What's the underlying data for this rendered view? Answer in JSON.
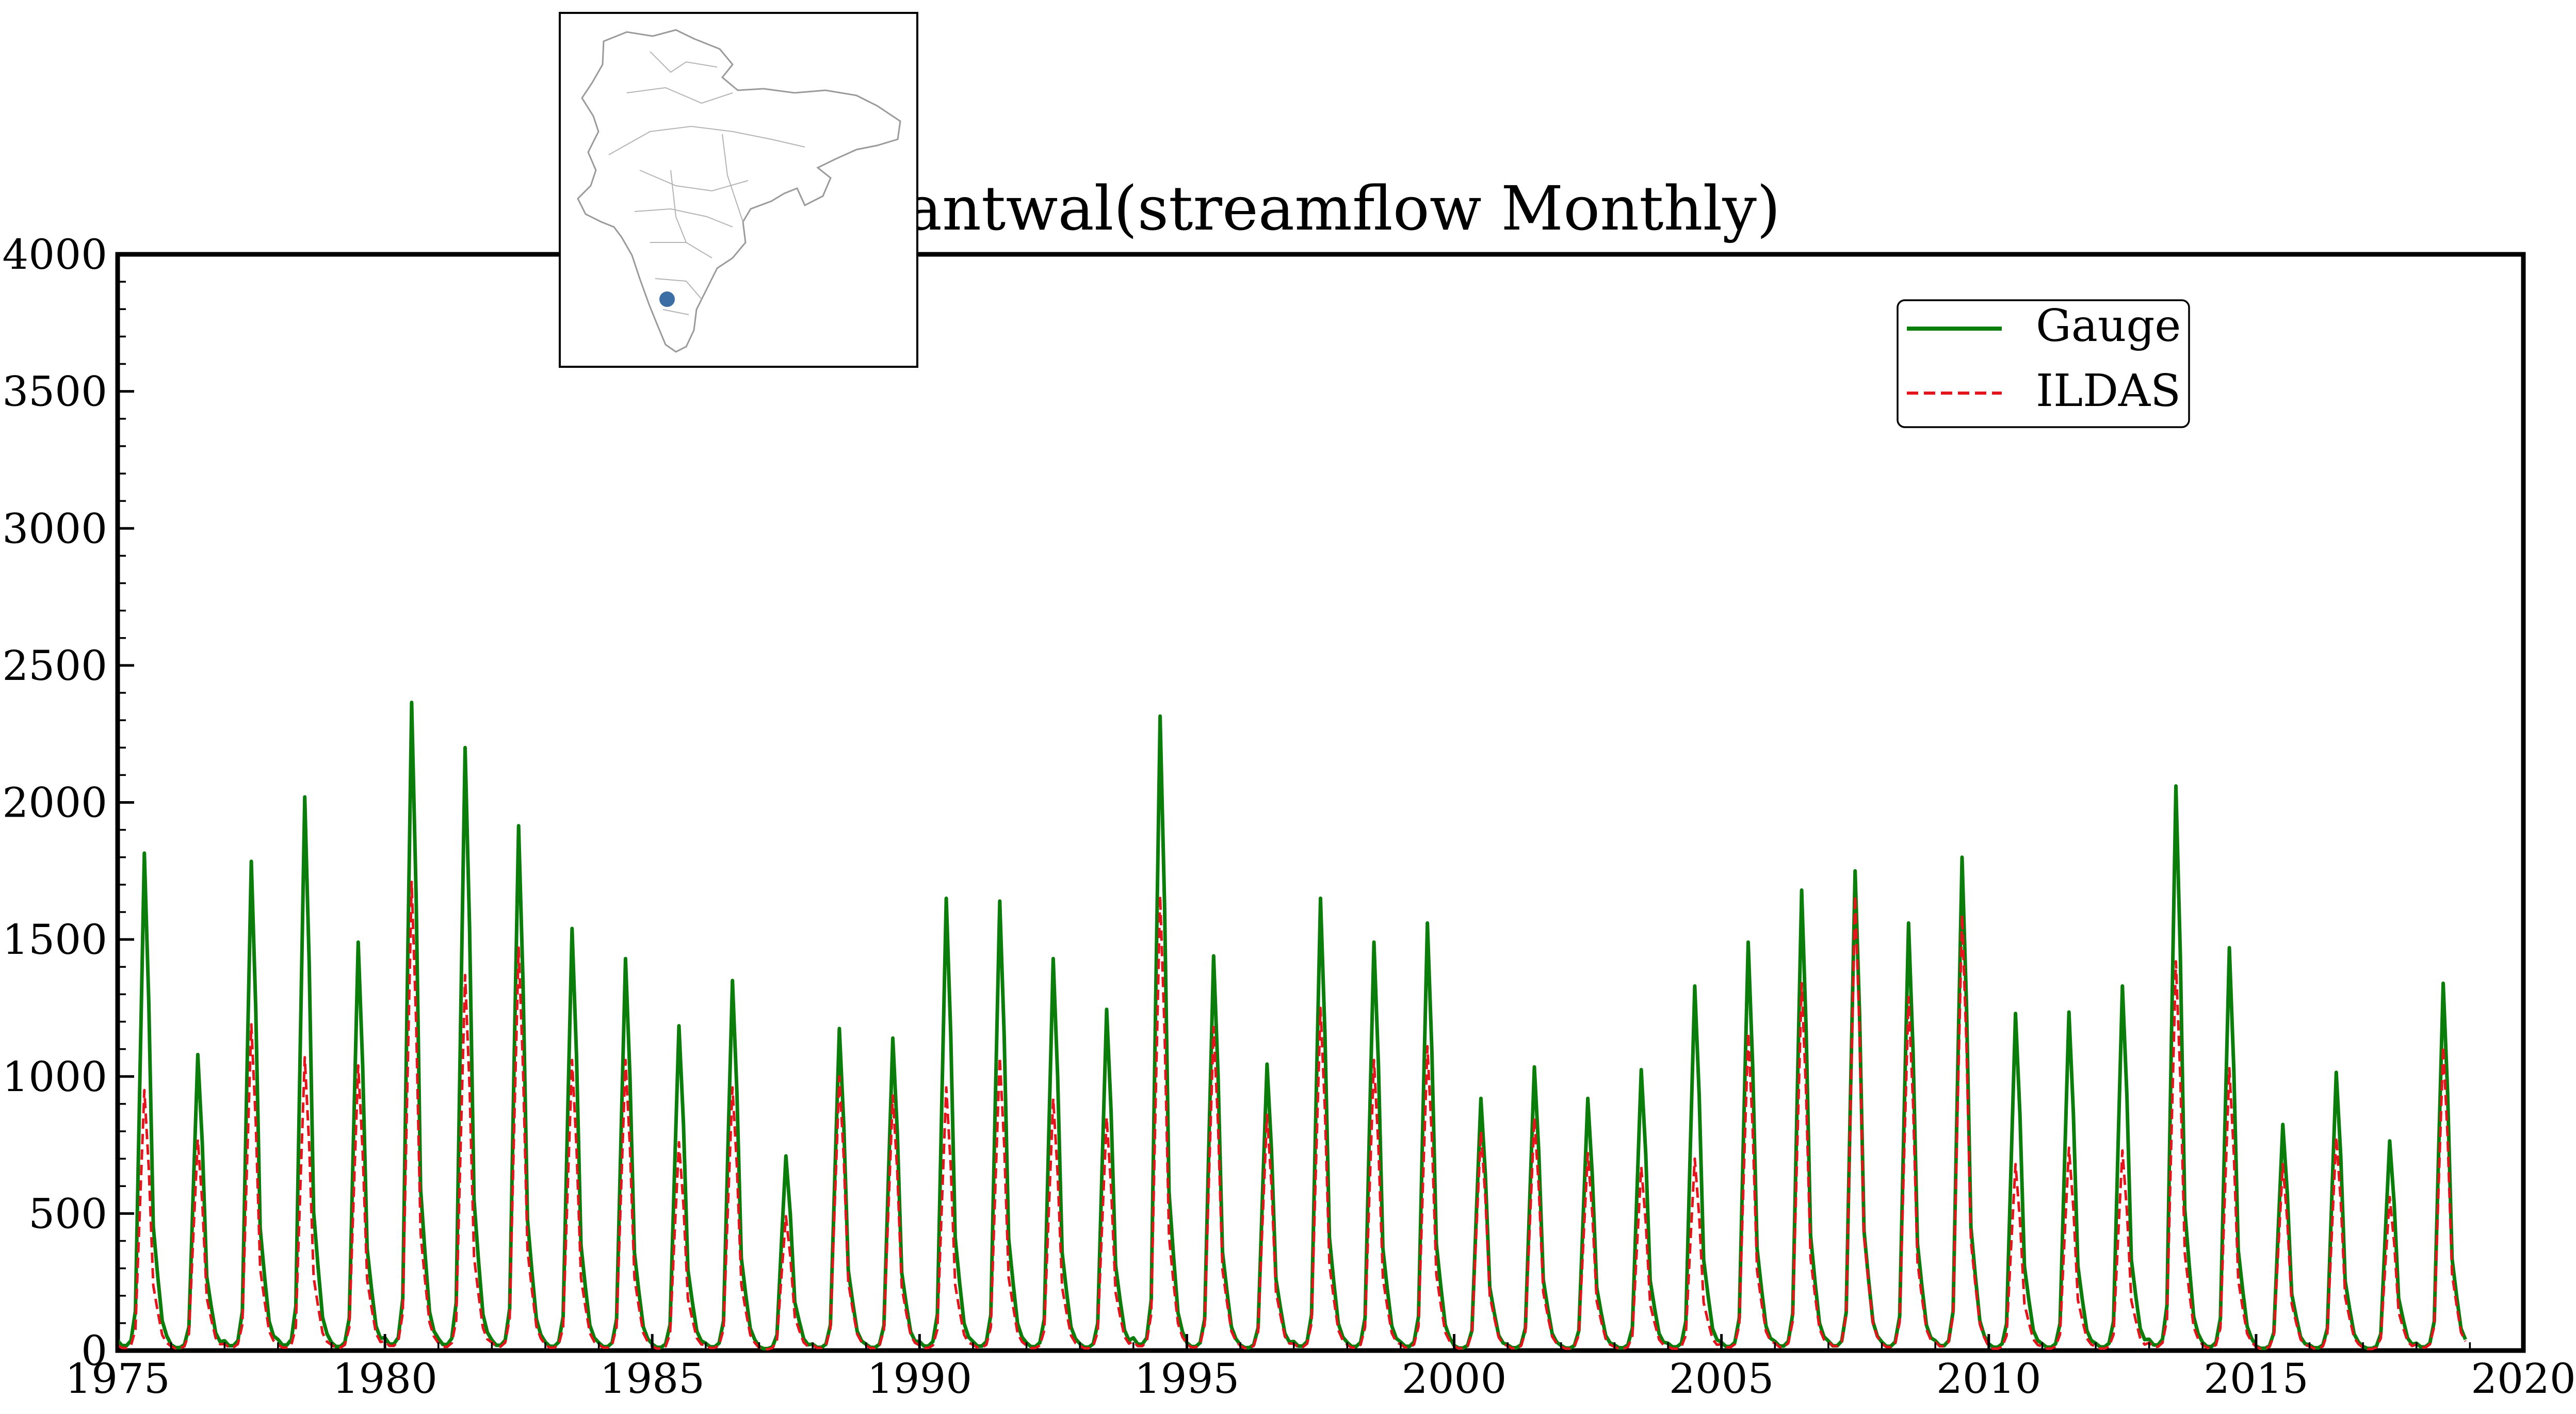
{
  "chart_data": {
    "type": "line",
    "title": "Bantwal(streamflow Monthly)",
    "xlabel": "",
    "ylabel": "",
    "xlim": [
      1975,
      2020
    ],
    "ylim": [
      0,
      4000
    ],
    "x_ticks": [
      1975,
      1980,
      1985,
      1990,
      1995,
      2000,
      2005,
      2010,
      2015,
      2020
    ],
    "y_ticks": [
      0,
      500,
      1000,
      1500,
      2000,
      2500,
      3000,
      3500,
      4000
    ],
    "grid": false,
    "legend_position": "top-right",
    "legend": [
      {
        "label": "Gauge",
        "color": "#0a7d0a",
        "style": "solid"
      },
      {
        "label": "ILDAS",
        "color": "#e3141c",
        "style": "dashed"
      }
    ],
    "month_profile": [
      0.02,
      0.01,
      0.01,
      0.02,
      0.08,
      0.55,
      1.0,
      0.7,
      0.25,
      0.15,
      0.06,
      0.03
    ],
    "series": [
      {
        "name": "Gauge",
        "color": "#0a7d0a",
        "style": "solid",
        "years": [
          1975,
          1976,
          1977,
          1978,
          1979,
          1980,
          1981,
          1982,
          1983,
          1984,
          1985,
          1986,
          1987,
          1988,
          1989,
          1990,
          1991,
          1992,
          1993,
          1994,
          1995,
          1996,
          1997,
          1998,
          1999,
          2000,
          2001,
          2002,
          2003,
          2004,
          2005,
          2006,
          2007,
          2008,
          2009,
          2010,
          2011,
          2012,
          2013,
          2014,
          2015,
          2016,
          2017,
          2018
        ],
        "annual_peak": [
          1815,
          1080,
          1785,
          2020,
          1490,
          2365,
          2200,
          1915,
          1540,
          1430,
          1185,
          1350,
          710,
          1175,
          1140,
          1650,
          1640,
          1430,
          1245,
          2315,
          1440,
          1045,
          1650,
          1490,
          1560,
          920,
          1035,
          920,
          1025,
          1330,
          1490,
          1680,
          1750,
          1560,
          1800,
          1230,
          1235,
          1330,
          2060,
          1470,
          825,
          1015,
          765,
          1340
        ]
      },
      {
        "name": "ILDAS",
        "color": "#e3141c",
        "style": "dashed",
        "years": [
          1975,
          1976,
          1977,
          1978,
          1979,
          1980,
          1981,
          1982,
          1983,
          1984,
          1985,
          1986,
          1987,
          1988,
          1989,
          1990,
          1991,
          1992,
          1993,
          1994,
          1995,
          1996,
          1997,
          1998,
          1999,
          2000,
          2001,
          2002,
          2003,
          2004,
          2005,
          2006,
          2007,
          2008,
          2009,
          2010,
          2011,
          2012,
          2013,
          2014,
          2015,
          2016,
          2017,
          2018
        ],
        "annual_peak": [
          950,
          770,
          1190,
          1070,
          1040,
          1710,
          1370,
          1470,
          1060,
          1060,
          760,
          960,
          490,
          1000,
          930,
          960,
          1070,
          920,
          850,
          1660,
          1180,
          860,
          1250,
          1060,
          1110,
          800,
          850,
          720,
          670,
          700,
          1160,
          1340,
          1660,
          1290,
          1590,
          680,
          740,
          730,
          1420,
          1030,
          680,
          780,
          560,
          1110
        ]
      }
    ]
  }
}
